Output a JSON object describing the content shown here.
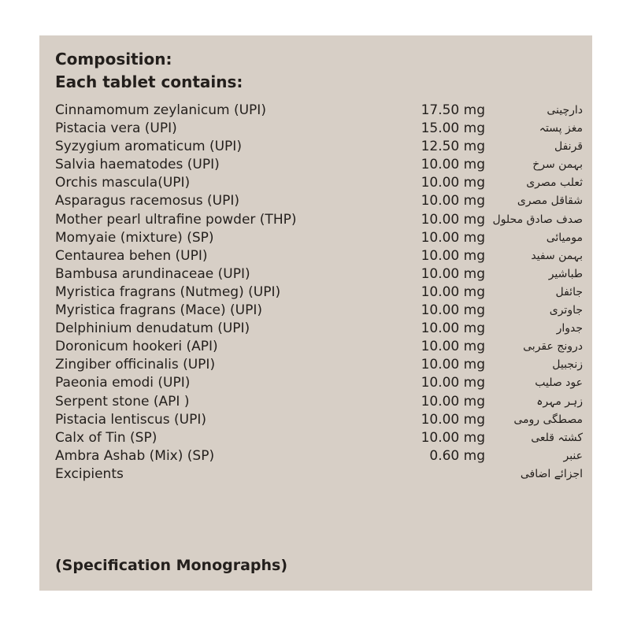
{
  "composition_label": "Composition:",
  "each_tablet_label": "Each tablet contains:",
  "ingredients": [
    {
      "name": "Cinnamomum zeylanicum (UPI)",
      "amount": "17.50 mg",
      "urdu": "دارچینی"
    },
    {
      "name": "Pistacia vera (UPI)",
      "amount": "15.00 mg",
      "urdu": "مغز پستہ"
    },
    {
      "name": "Syzygium aromaticum (UPI)",
      "amount": "12.50 mg",
      "urdu": "قرنفل"
    },
    {
      "name": "Salvia haematodes (UPI)",
      "amount": "10.00 mg",
      "urdu": "بہمن سرخ"
    },
    {
      "name": "Orchis mascula(UPI)",
      "amount": "10.00 mg",
      "urdu": "ثعلب مصری"
    },
    {
      "name": "Asparagus racemosus (UPI)",
      "amount": "10.00 mg",
      "urdu": "شقاقل مصری"
    },
    {
      "name": "Mother pearl ultrafine powder (THP)",
      "amount": "10.00 mg",
      "urdu": "صدف صادق محلول"
    },
    {
      "name": "Momyaie (mixture) (SP)",
      "amount": "10.00 mg",
      "urdu": "مومیائی"
    },
    {
      "name": "Centaurea behen (UPI)",
      "amount": "10.00 mg",
      "urdu": "بہمن سفید"
    },
    {
      "name": "Bambusa arundinaceae (UPI)",
      "amount": "10.00 mg",
      "urdu": "طباشیر"
    },
    {
      "name": "Myristica fragrans (Nutmeg) (UPI)",
      "amount": "10.00 mg",
      "urdu": "جائفل"
    },
    {
      "name": "Myristica fragrans (Mace) (UPI)",
      "amount": "10.00 mg",
      "urdu": "جاوتری"
    },
    {
      "name": "Delphinium denudatum (UPI)",
      "amount": "10.00 mg",
      "urdu": "جدوار"
    },
    {
      "name": "Doronicum hookeri (API)",
      "amount": "10.00 mg",
      "urdu": "درونج عقربی"
    },
    {
      "name": "Zingiber officinalis (UPI)",
      "amount": "10.00 mg",
      "urdu": "زنجبیل"
    },
    {
      "name": "Paeonia emodi (UPI)",
      "amount": "10.00 mg",
      "urdu": "عود صلیب"
    },
    {
      "name": "Serpent stone (API )",
      "amount": "10.00 mg",
      "urdu": "زہر مہرہ"
    },
    {
      "name": "Pistacia lentiscus (UPI)",
      "amount": "10.00 mg",
      "urdu": "مصطگی رومی"
    },
    {
      "name": "Calx of Tin (SP)",
      "amount": "10.00 mg",
      "urdu": "کشتہ قلعی"
    },
    {
      "name": "Ambra Ashab (Mix) (SP)",
      "amount": "0.60 mg",
      "urdu": "عنبر"
    },
    {
      "name": "Excipients",
      "amount": "",
      "urdu": "اجزائے اضافی"
    }
  ],
  "footnote": "(Specification Monographs)"
}
